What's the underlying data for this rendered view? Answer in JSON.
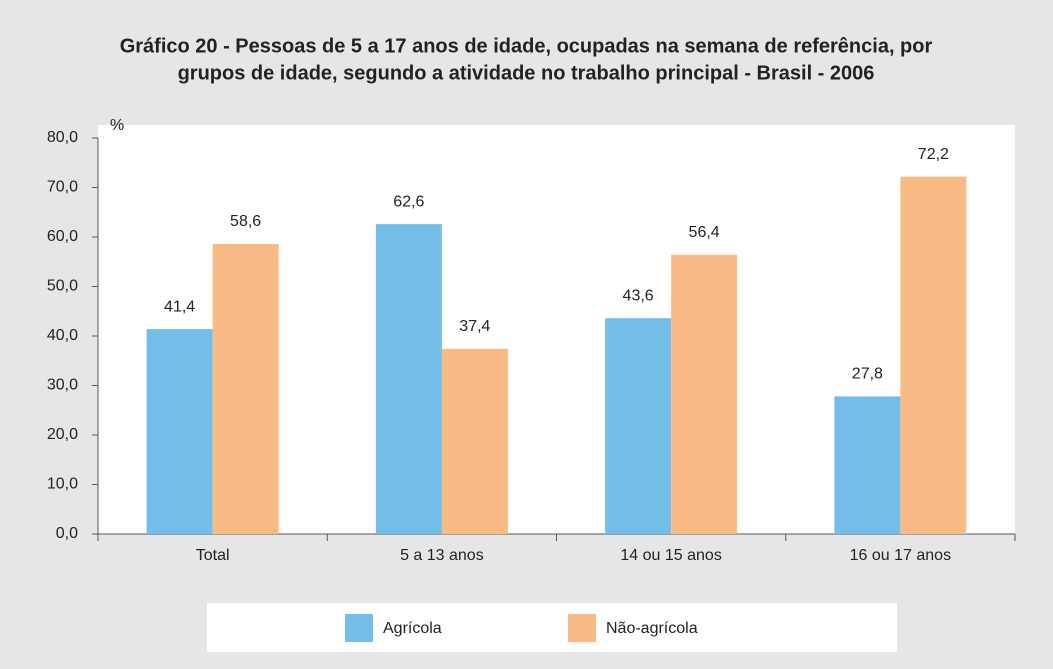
{
  "chart_data": {
    "type": "bar",
    "title": [
      "Gráfico 20 - Pessoas de 5 a 17 anos de idade, ocupadas na semana de referência, por",
      "grupos de idade, segundo a atividade no trabalho principal - Brasil - 2006"
    ],
    "y_label": "%",
    "categories": [
      "Total",
      "5 a 13 anos",
      "14 ou 15 anos",
      "16 ou 17 anos"
    ],
    "series": [
      {
        "name": "Agrícola",
        "color": "#74bde8",
        "values": [
          41.4,
          62.6,
          43.6,
          27.8
        ],
        "value_labels": [
          "41,4",
          "62,6",
          "43,6",
          "27,8"
        ]
      },
      {
        "name": "Não-agrícola",
        "color": "#f9bb85",
        "values": [
          58.6,
          37.4,
          56.4,
          72.2
        ],
        "value_labels": [
          "58,6",
          "37,4",
          "56,4",
          "72,2"
        ]
      }
    ],
    "ylim": [
      0,
      80
    ],
    "yticks": [
      {
        "value": 0,
        "label": "0,0"
      },
      {
        "value": 10,
        "label": "10,0"
      },
      {
        "value": 20,
        "label": "20,0"
      },
      {
        "value": 30,
        "label": "30,0"
      },
      {
        "value": 40,
        "label": "40,0"
      },
      {
        "value": 50,
        "label": "50,0"
      },
      {
        "value": 60,
        "label": "60,0"
      },
      {
        "value": 70,
        "label": "70,0"
      },
      {
        "value": 80,
        "label": "80,0"
      }
    ],
    "grid": false,
    "legend": "bottom"
  }
}
